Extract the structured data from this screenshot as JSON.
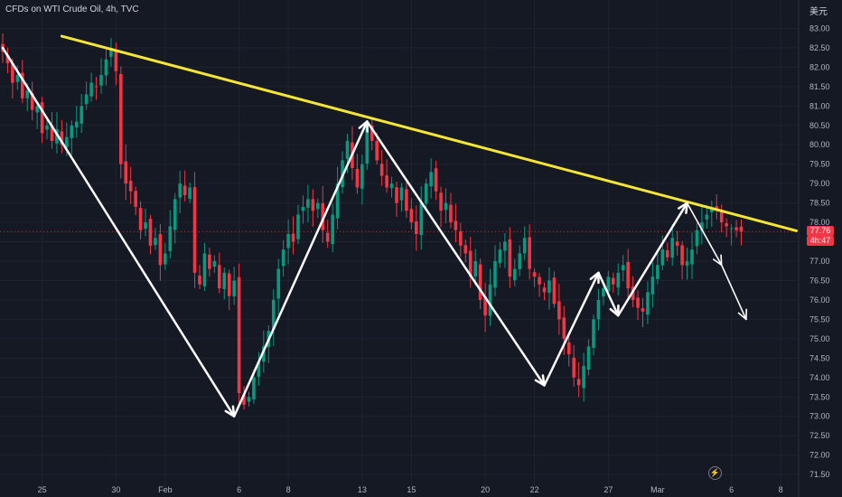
{
  "header": {
    "title": "CFDs on WTI Crude Oil, 4h, TVC",
    "currency": "美元"
  },
  "price_tag": {
    "last_price": "77.76",
    "countdown": "4h:47"
  },
  "colors": {
    "background": "#151924",
    "grid": "#1f2330",
    "axis_text": "#b2b5be",
    "up_candle": "#089981",
    "down_candle": "#f23645",
    "trendline": "#f5e538",
    "arrows": "#ffffff",
    "price_line": "#f23645"
  },
  "icons": {
    "replay": "lightning-icon"
  },
  "chart_data": {
    "type": "candlestick",
    "title": "CFDs on WTI Crude Oil, 4h, TVC",
    "xlabel": "",
    "ylabel": "",
    "y_ticks": [
      71.5,
      72.0,
      72.5,
      73.0,
      73.5,
      74.0,
      74.5,
      75.0,
      75.5,
      76.0,
      76.5,
      77.0,
      77.5,
      78.0,
      78.5,
      79.0,
      79.5,
      80.0,
      80.5,
      81.0,
      81.5,
      82.0,
      82.5,
      83.0
    ],
    "y_tick_labels": [
      "71.50",
      "72.00",
      "72.50",
      "73.00",
      "73.50",
      "74.00",
      "74.50",
      "75.00",
      "75.50",
      "76.00",
      "76.50",
      "77.00",
      "77.50",
      "78.00",
      "78.50",
      "79.00",
      "79.50",
      "80.00",
      "80.50",
      "81.00",
      "81.50",
      "82.00",
      "82.50",
      "83.00"
    ],
    "ylim": [
      71.2,
      83.5
    ],
    "x_ticks": [
      {
        "label": "25",
        "bar": 8
      },
      {
        "label": "30",
        "bar": 23
      },
      {
        "label": "Feb",
        "bar": 33
      },
      {
        "label": "6",
        "bar": 48
      },
      {
        "label": "8",
        "bar": 58
      },
      {
        "label": "13",
        "bar": 73
      },
      {
        "label": "15",
        "bar": 83
      },
      {
        "label": "20",
        "bar": 98
      },
      {
        "label": "22",
        "bar": 108
      },
      {
        "label": "27",
        "bar": 123
      },
      {
        "label": "Mar",
        "bar": 133
      },
      {
        "label": "6",
        "bar": 148
      },
      {
        "label": "8",
        "bar": 158
      }
    ],
    "xlim_bars": [
      0,
      160
    ],
    "candles_close": [
      82.4,
      82.1,
      81.6,
      81.8,
      81.2,
      81.4,
      80.9,
      81.0,
      80.3,
      80.5,
      80.1,
      80.4,
      80.0,
      80.2,
      80.5,
      80.6,
      81.0,
      81.3,
      81.6,
      81.5,
      81.8,
      82.2,
      82.5,
      81.9,
      79.5,
      79.0,
      78.8,
      78.4,
      77.8,
      78.0,
      77.4,
      77.6,
      76.9,
      77.2,
      77.9,
      78.6,
      79.0,
      78.7,
      78.9,
      76.7,
      76.4,
      77.2,
      76.8,
      77.0,
      76.3,
      76.7,
      76.1,
      76.5,
      73.6,
      73.3,
      73.5,
      74.0,
      74.4,
      74.8,
      75.2,
      76.0,
      76.8,
      77.3,
      77.7,
      77.5,
      78.2,
      78.4,
      78.6,
      78.3,
      78.5,
      77.8,
      77.5,
      78.2,
      79.0,
      79.6,
      80.1,
      79.4,
      78.9,
      79.5,
      80.5,
      80.1,
      79.6,
      79.2,
      78.9,
      79.0,
      78.5,
      78.9,
      78.3,
      78.0,
      77.7,
      78.5,
      79.0,
      79.3,
      78.8,
      78.3,
      78.5,
      78.0,
      77.8,
      77.4,
      77.2,
      76.6,
      77.0,
      76.0,
      75.6,
      76.4,
      77.0,
      77.3,
      77.5,
      76.6,
      76.8,
      77.2,
      77.6,
      76.8,
      76.6,
      76.4,
      76.2,
      76.5,
      75.9,
      75.5,
      75.0,
      74.6,
      74.0,
      73.8,
      74.3,
      74.8,
      75.5,
      76.0,
      76.3,
      76.6,
      76.4,
      76.7,
      76.9,
      76.3,
      76.0,
      75.8,
      75.7,
      76.2,
      76.6,
      76.9,
      77.3,
      77.1,
      77.6,
      77.4,
      76.9,
      77.0,
      77.3,
      77.8,
      78.0,
      78.2,
      78.4,
      78.3,
      78.0,
      77.9,
      77.85,
      77.8,
      77.76
    ],
    "last_price": 77.76,
    "trendline": {
      "from": {
        "bar": 12,
        "price": 82.8
      },
      "to": {
        "bar": 159,
        "price": 77.76
      }
    },
    "pattern_points": [
      {
        "bar": 0,
        "price": 82.5
      },
      {
        "bar": 47,
        "price": 73.0
      },
      {
        "bar": 74,
        "price": 80.6
      },
      {
        "bar": 110,
        "price": 73.8
      },
      {
        "bar": 121,
        "price": 76.7
      },
      {
        "bar": 125,
        "price": 75.6
      },
      {
        "bar": 139,
        "price": 78.5
      }
    ],
    "projection_points": [
      {
        "bar": 139,
        "price": 78.5
      },
      {
        "bar": 146,
        "price": 76.9
      },
      {
        "bar": 151,
        "price": 75.5
      }
    ],
    "grid": true
  }
}
